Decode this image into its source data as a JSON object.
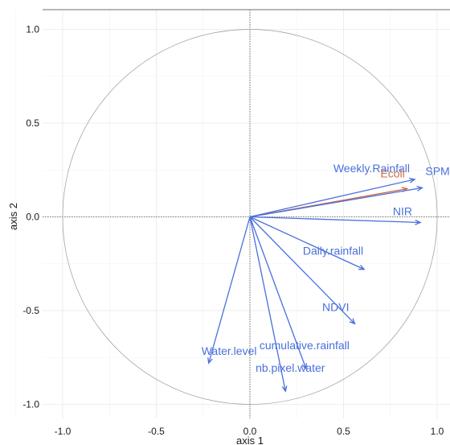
{
  "chart_data": {
    "type": "scatter",
    "subtype": "correlation-circle",
    "title": "",
    "xlabel": "axis 1",
    "ylabel": "axis 2",
    "xlim": [
      -1.1,
      1.1
    ],
    "ylim": [
      -1.1,
      1.1
    ],
    "x_ticks": [
      -1.0,
      -0.5,
      0.0,
      0.5,
      1.0
    ],
    "y_ticks": [
      -1.0,
      -0.5,
      0.0,
      0.5,
      1.0
    ],
    "x_tick_labels": [
      "-1.0",
      "-0.5",
      "0.0",
      "0.5",
      "1.0"
    ],
    "y_tick_labels": [
      "-1.0",
      "-0.5",
      "0.0",
      "0.5",
      "1.0"
    ],
    "grid": true,
    "reference_lines": [
      0,
      0
    ],
    "unit_circle": true,
    "vectors": [
      {
        "name": "Weekly.Rainfall",
        "x": 0.88,
        "y": 0.2,
        "color": "#4a6fdc"
      },
      {
        "name": "Ecoli",
        "x": 0.84,
        "y": 0.15,
        "color": "#cd6a4a"
      },
      {
        "name": "SPM",
        "x": 0.92,
        "y": 0.155,
        "color": "#4a6fdc"
      },
      {
        "name": "NIR",
        "x": 0.91,
        "y": -0.03,
        "color": "#4a6fdc"
      },
      {
        "name": "Daily.rainfall",
        "x": 0.61,
        "y": -0.28,
        "color": "#4a6fdc"
      },
      {
        "name": "NDVI",
        "x": 0.56,
        "y": -0.57,
        "color": "#4a6fdc"
      },
      {
        "name": "cumulative.rainfall",
        "x": 0.3,
        "y": -0.81,
        "color": "#4a6fdc"
      },
      {
        "name": "nb.pixel.water",
        "x": 0.19,
        "y": -0.93,
        "color": "#4a6fdc"
      },
      {
        "name": "Water.level",
        "x": -0.22,
        "y": -0.78,
        "color": "#4a6fdc"
      }
    ]
  }
}
